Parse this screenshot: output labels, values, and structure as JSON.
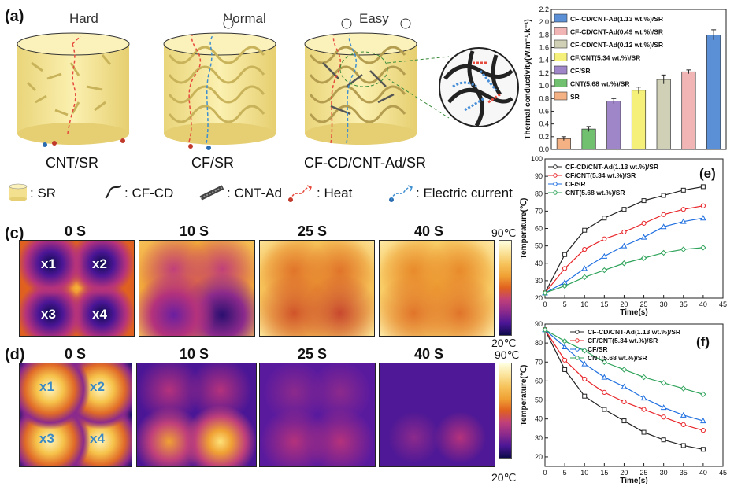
{
  "panel_a": {
    "label": "(a)",
    "top_labels": [
      "Hard",
      "Normal",
      "Easy"
    ],
    "captions": [
      "CNT/SR",
      "CF/SR",
      "CF-CD/CNT-Ad/SR"
    ]
  },
  "legend": {
    "items": [
      ": SR",
      ": CF-CD",
      ": CNT-Ad",
      ": Heat",
      ": Electric current"
    ]
  },
  "panel_c": {
    "label": "(c)",
    "times": [
      "0 S",
      "10 S",
      "25 S",
      "40 S"
    ],
    "points": [
      "x1",
      "x2",
      "x3",
      "x4"
    ],
    "scale_max": "90℃",
    "scale_min": "20℃"
  },
  "panel_d": {
    "label": "(d)",
    "times": [
      "0 S",
      "10 S",
      "25 S",
      "40 S"
    ],
    "points": [
      "x1",
      "x2",
      "x3",
      "x4"
    ],
    "scale_max": "90℃",
    "scale_min": "20℃"
  },
  "chart_data": [
    {
      "type": "bar",
      "ylabel": "Thermal conductivity(W.m⁻¹.k⁻¹)",
      "ylim": [
        0.0,
        2.2
      ],
      "yticks": [
        "0.0",
        "0.2",
        "0.4",
        "0.6",
        "0.8",
        "1.0",
        "1.2",
        "1.4",
        "1.6",
        "1.8",
        "2.0",
        "2.2"
      ],
      "categories": [
        "SR",
        "CNT(5.68 wt.%)/SR",
        "CF/SR",
        "CF/CNT(5.34 wt.%)/SR",
        "CF-CD/CNT-Ad(0.12 wt.%)/SR",
        "CF-CD/CNT-Ad(0.49 wt.%)/SR",
        "CF-CD/CNT-Ad(1.13 wt.%)/SR"
      ],
      "values": [
        0.17,
        0.32,
        0.76,
        0.93,
        1.1,
        1.22,
        1.8
      ],
      "errors": [
        0.03,
        0.04,
        0.04,
        0.05,
        0.07,
        0.03,
        0.08
      ],
      "colors": [
        "#f4b183",
        "#70c070",
        "#9e86c8",
        "#f5f07a",
        "#cfd0b5",
        "#f2b5b5",
        "#5b8fd6"
      ],
      "legend": [
        "CF-CD/CNT-Ad(1.13 wt.%)/SR",
        "CF-CD/CNT-Ad(0.49 wt.%)/SR",
        "CF-CD/CNT-Ad(0.12 wt.%)/SR",
        "CF/CNT(5.34 wt.%)/SR",
        "CF/SR",
        "CNT(5.68 wt.%)/SR",
        "SR"
      ]
    },
    {
      "type": "line",
      "label": "(e)",
      "xlabel": "Time(s)",
      "ylabel": "Temperature(℃)",
      "xlim": [
        0,
        45
      ],
      "ylim": [
        20,
        100
      ],
      "xticks": [
        0,
        5,
        10,
        15,
        20,
        25,
        30,
        35,
        40,
        45
      ],
      "yticks": [
        20,
        30,
        40,
        50,
        60,
        70,
        80,
        90,
        100
      ],
      "x": [
        0,
        5,
        10,
        15,
        20,
        25,
        30,
        35,
        40
      ],
      "series": [
        {
          "name": "CF-CD/CNT-Ad(1.13 wt.%)/SR",
          "color": "#222222",
          "marker": "square",
          "values": [
            23,
            45,
            59,
            66,
            71,
            76,
            79,
            82,
            84
          ]
        },
        {
          "name": "CF/CNT(5.34 wt.%)/SR",
          "color": "#e8262a",
          "marker": "circle",
          "values": [
            23,
            37,
            48,
            54,
            58,
            63,
            68,
            71,
            73
          ]
        },
        {
          "name": "CF/SR",
          "color": "#1f6fe0",
          "marker": "triangle",
          "values": [
            23,
            29,
            37,
            44,
            50,
            55,
            61,
            64,
            66
          ]
        },
        {
          "name": "CNT(5.68 wt.%)/SR",
          "color": "#2ea35a",
          "marker": "diamond",
          "values": [
            23,
            27,
            32,
            36,
            40,
            43,
            46,
            48,
            49
          ]
        }
      ]
    },
    {
      "type": "line",
      "label": "(f)",
      "xlabel": "Time(s)",
      "ylabel": "Temperature(℃)",
      "xlim": [
        0,
        45
      ],
      "ylim": [
        15,
        90
      ],
      "xticks": [
        0,
        5,
        10,
        15,
        20,
        25,
        30,
        35,
        40,
        45
      ],
      "yticks": [
        20,
        30,
        40,
        50,
        60,
        70,
        80,
        90
      ],
      "x": [
        0,
        5,
        10,
        15,
        20,
        25,
        30,
        35,
        40
      ],
      "series": [
        {
          "name": "CF-CD/CNT-Ad(1.13 wt.%)/SR",
          "color": "#222222",
          "marker": "square",
          "values": [
            87,
            66,
            52,
            45,
            39,
            33,
            29,
            26,
            24
          ]
        },
        {
          "name": "CF/CNT(5.34 wt.%)/SR",
          "color": "#e8262a",
          "marker": "circle",
          "values": [
            87,
            71,
            61,
            54,
            49,
            45,
            41,
            37,
            34
          ]
        },
        {
          "name": "CF/SR",
          "color": "#1f6fe0",
          "marker": "triangle",
          "values": [
            87,
            78,
            69,
            62,
            57,
            51,
            46,
            42,
            39
          ]
        },
        {
          "name": "CNT(5.68 wt.%)/SR",
          "color": "#2ea35a",
          "marker": "diamond",
          "values": [
            87,
            81,
            76,
            70,
            66,
            62,
            59,
            56,
            53
          ]
        }
      ]
    }
  ]
}
